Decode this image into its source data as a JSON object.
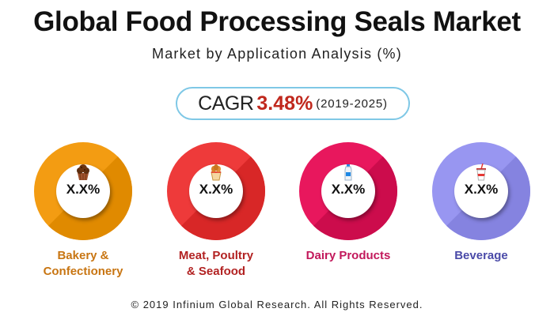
{
  "header": {
    "title": "Global Food Processing Seals Market",
    "subtitle": "Market by Application Analysis (%)"
  },
  "cagr": {
    "label": "CAGR",
    "value": "3.48%",
    "period": "(2019-2025)",
    "value_color": "#c0281d",
    "border_color": "#7fc8e6"
  },
  "segments": [
    {
      "value": "X.X%",
      "label_line1": "Bakery &",
      "label_line2": "Confectionery",
      "color": "#f39c12",
      "dark_color": "#e08a00",
      "label_color": "#c87512",
      "icon": "muffin-icon"
    },
    {
      "value": "X.X%",
      "label_line1": "Meat, Poultry",
      "label_line2": "& Seafood",
      "color": "#ee3a3a",
      "dark_color": "#d82727",
      "label_color": "#b22222",
      "icon": "fried-chicken-icon"
    },
    {
      "value": "X.X%",
      "label_line1": "Dairy Products",
      "label_line2": "",
      "color": "#e8175d",
      "dark_color": "#cc0c4c",
      "label_color": "#c2185b",
      "icon": "milk-bottle-icon"
    },
    {
      "value": "X.X%",
      "label_line1": "Beverage",
      "label_line2": "",
      "color": "#9896f1",
      "dark_color": "#8583e0",
      "label_color": "#4a4aa8",
      "icon": "drink-cup-icon"
    }
  ],
  "footer": {
    "copyright": "© 2019 Infinium Global Research. All Rights Reserved."
  }
}
